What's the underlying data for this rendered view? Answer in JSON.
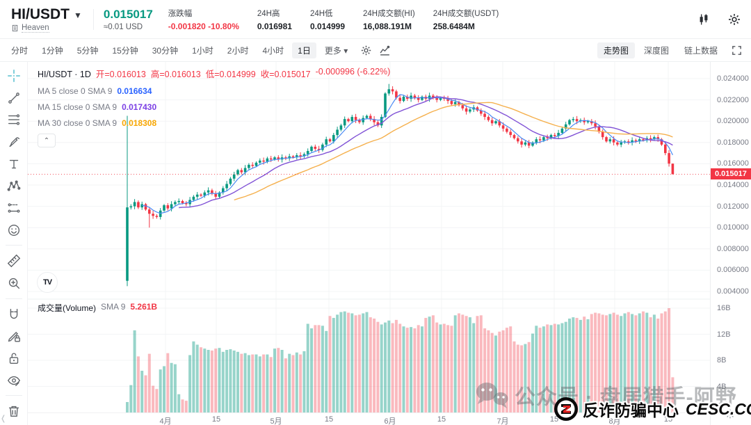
{
  "header": {
    "symbol": "HI/USDT",
    "exchange": "Heaven",
    "price": "0.015017",
    "price_approx": "≈0.01 USD",
    "stats": [
      {
        "label": "涨跌幅",
        "value": "-0.001820 -10.80%",
        "color": "#f23645"
      },
      {
        "label": "24H高",
        "value": "0.016981"
      },
      {
        "label": "24H低",
        "value": "0.014999"
      },
      {
        "label": "24H成交额(HI)",
        "value": "16,088.191M"
      },
      {
        "label": "24H成交额(USDT)",
        "value": "258.6484M"
      }
    ]
  },
  "toolbar": {
    "intervals": [
      {
        "label": "分时"
      },
      {
        "label": "1分钟"
      },
      {
        "label": "5分钟"
      },
      {
        "label": "15分钟"
      },
      {
        "label": "30分钟"
      },
      {
        "label": "1小时"
      },
      {
        "label": "2小时"
      },
      {
        "label": "4小时"
      },
      {
        "label": "1日",
        "active": true
      },
      {
        "label": "更多 ▾"
      }
    ],
    "views": [
      {
        "label": "走势图",
        "active": true
      },
      {
        "label": "深度图"
      },
      {
        "label": "链上数据"
      }
    ]
  },
  "sidebar": {
    "tools": [
      "crosshair",
      "trend-line",
      "parallel-lines",
      "brush",
      "text",
      "xabcd-pattern",
      "forecast",
      "emoji",
      "ruler",
      "zoom-in",
      "magnet",
      "pencil-lock",
      "padlock",
      "eye",
      "trash"
    ],
    "dividers_after": [
      7,
      9,
      13
    ]
  },
  "legend": {
    "title": "HI/USDT · 1D",
    "ohlc_parts": [
      "开=0.016013",
      "高=0.016013",
      "低=0.014999",
      "收=0.015017",
      "-0.000996 (-6.22%)"
    ],
    "ma_rows": [
      {
        "label": "MA 5 close 0 SMA 9",
        "value": "0.016634",
        "color": "#2962ff"
      },
      {
        "label": "MA 15 close 0 SMA 9",
        "value": "0.017430",
        "color": "#7b3fe4"
      },
      {
        "label": "MA 30 close 0 SMA 9",
        "value": "0.018308",
        "color": "#f7a600"
      }
    ],
    "collapse_glyph": "⌃"
  },
  "volume_legend": {
    "title": "成交量(Volume)",
    "ma_label": "SMA 9",
    "ma_value": "5.261B"
  },
  "watermarks": {
    "gray_text": "公众号 · 盘居猎手-阿野",
    "badge_text": "反诈防骗中心",
    "badge_site": "CESC.CC"
  },
  "tv_logo_text": "TV",
  "colors": {
    "up": "#089981",
    "down": "#f23645",
    "vol_up": "rgba(8,153,129,0.42)",
    "vol_down": "rgba(242,54,69,0.35)",
    "ma5_line": "#4a8af4",
    "ma15_line": "#8153d6",
    "ma30_line": "#f5b04d",
    "grid": "#f3f4f6",
    "current_price": "#f23645"
  },
  "chart_data": {
    "type": "candlestick+volume",
    "title": "HI/USDT 1D",
    "legend_last_candle": {
      "open": 0.016013,
      "high": 0.016013,
      "low": 0.014999,
      "close": 0.015017,
      "change": "-0.000996",
      "change_pct": "-6.22%"
    },
    "current_price_label": "0.015017",
    "price_axis_ticks": [
      "0.024000",
      "0.022000",
      "0.020000",
      "0.018000",
      "0.016000",
      "0.014000",
      "0.012000",
      "0.010000",
      "0.008000",
      "0.006000",
      "0.004000"
    ],
    "price_axis_range": [
      0.024,
      0.004
    ],
    "volume_axis_ticks": [
      "16B",
      "12B",
      "8B",
      "4B"
    ],
    "time_axis_ticks": [
      "4月",
      "15",
      "5月",
      "15",
      "6月",
      "15",
      "7月",
      "15",
      "8月",
      "15"
    ],
    "ma_periods": [
      5,
      15,
      30
    ],
    "closes": [
      0.0119,
      0.012,
      0.0124,
      0.0119,
      0.0122,
      0.0117,
      0.0113,
      0.0111,
      0.011,
      0.0116,
      0.0121,
      0.0118,
      0.0122,
      0.0124,
      0.0125,
      0.0123,
      0.0122,
      0.0126,
      0.0129,
      0.0131,
      0.013,
      0.0133,
      0.0135,
      0.0132,
      0.0129,
      0.0133,
      0.0137,
      0.0141,
      0.0146,
      0.015,
      0.0154,
      0.0152,
      0.0156,
      0.0159,
      0.0158,
      0.0161,
      0.0163,
      0.0162,
      0.0165,
      0.0164,
      0.0166,
      0.0164,
      0.0166,
      0.0165,
      0.0167,
      0.0166,
      0.0168,
      0.0167,
      0.0169,
      0.0172,
      0.0176,
      0.0174,
      0.0173,
      0.0178,
      0.0183,
      0.0181,
      0.0187,
      0.0192,
      0.0196,
      0.0202,
      0.02,
      0.0204,
      0.0201,
      0.0199,
      0.0203,
      0.0205,
      0.0202,
      0.0199,
      0.0196,
      0.0204,
      0.0226,
      0.023,
      0.0228,
      0.0222,
      0.0219,
      0.0223,
      0.0221,
      0.0224,
      0.0222,
      0.022,
      0.0223,
      0.0221,
      0.0224,
      0.0222,
      0.022,
      0.0222,
      0.0221,
      0.0219,
      0.0216,
      0.0218,
      0.0215,
      0.0212,
      0.0209,
      0.0211,
      0.0213,
      0.021,
      0.0207,
      0.0204,
      0.0201,
      0.0198,
      0.02,
      0.0196,
      0.0193,
      0.019,
      0.0187,
      0.0184,
      0.0181,
      0.0178,
      0.018,
      0.0177,
      0.018,
      0.0183,
      0.0182,
      0.0185,
      0.0184,
      0.0187,
      0.0186,
      0.0189,
      0.0193,
      0.0197,
      0.0201,
      0.0202,
      0.02,
      0.0201,
      0.0199,
      0.02,
      0.0198,
      0.0195,
      0.019,
      0.0185,
      0.0181,
      0.0183,
      0.018,
      0.0178,
      0.018,
      0.0181,
      0.018,
      0.0182,
      0.0181,
      0.0183,
      0.0182,
      0.0184,
      0.0183,
      0.0185,
      0.0183,
      0.0178,
      0.017,
      0.016013,
      0.015017
    ],
    "volumes_b": [
      1.6,
      4.2,
      12.6,
      8.6,
      6.4,
      5.7,
      9.0,
      4.1,
      3.6,
      6.6,
      7.1,
      9.1,
      7.6,
      7.4,
      2.8,
      2.0,
      1.8,
      8.8,
      10.9,
      10.4,
      10.0,
      9.8,
      9.6,
      9.5,
      9.8,
      9.9,
      9.3,
      9.6,
      9.7,
      9.5,
      9.3,
      9.0,
      9.1,
      8.8,
      8.9,
      8.9,
      8.6,
      8.9,
      8.9,
      8.5,
      9.8,
      9.9,
      9.6,
      8.3,
      9.0,
      8.8,
      9.2,
      8.9,
      9.4,
      13.6,
      12.9,
      13.4,
      13.4,
      13.3,
      12.5,
      14.8,
      14.5,
      15.0,
      15.4,
      15.5,
      15.3,
      15.2,
      14.9,
      15.0,
      15.2,
      15.4,
      14.6,
      14.4,
      13.9,
      13.5,
      13.8,
      14.1,
      13.7,
      14.2,
      13.6,
      13.2,
      13.0,
      13.1,
      12.9,
      13.4,
      13.2,
      14.5,
      14.7,
      14.9,
      13.8,
      13.5,
      13.6,
      13.4,
      13.3,
      14.9,
      15.2,
      15.0,
      14.8,
      14.6,
      13.7,
      14.8,
      14.9,
      12.9,
      12.6,
      12.2,
      11.8,
      12.4,
      12.6,
      13.0,
      13.2,
      10.9,
      10.4,
      10.3,
      10.5,
      10.8,
      12.1,
      13.3,
      13.0,
      13.2,
      13.5,
      13.4,
      13.6,
      13.5,
      13.7,
      13.9,
      14.4,
      14.6,
      14.5,
      14.2,
      14.7,
      14.3,
      15.1,
      15.3,
      15.2,
      15.0,
      14.9,
      15.1,
      15.3,
      15.0,
      14.8,
      15.2,
      15.4,
      15.1,
      14.9,
      15.2,
      15.5,
      15.3,
      14.6,
      15.0,
      14.4,
      15.2,
      15.5,
      16.0,
      5.4
    ],
    "candle_overrides": {
      "0": {
        "open": 0.005,
        "high": 0.0205,
        "low": 0.0045
      },
      "6": {
        "low": 0.01
      },
      "71": {
        "high": 0.0235
      },
      "148": {
        "open": 0.016013,
        "high": 0.016013,
        "low": 0.014999
      }
    }
  }
}
